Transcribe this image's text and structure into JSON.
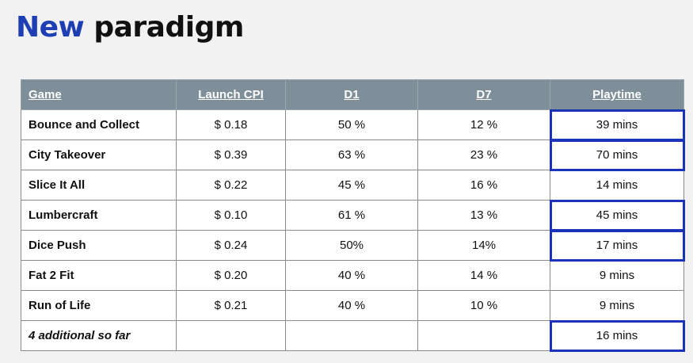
{
  "title": {
    "accent": "New",
    "rest": "paradigm"
  },
  "table": {
    "headers": [
      "Game",
      "Launch CPI",
      "D1",
      "D7",
      "Playtime"
    ],
    "rows": [
      {
        "cells": [
          "Bounce and Collect",
          "$ 0.18",
          "50 %",
          "12 %",
          "39 mins"
        ],
        "highlight_playtime": true
      },
      {
        "cells": [
          "City Takeover",
          "$ 0.39",
          "63 %",
          "23 %",
          "70 mins"
        ],
        "highlight_playtime": true
      },
      {
        "cells": [
          "Slice It All",
          "$ 0.22",
          "45 %",
          "16 %",
          "14 mins"
        ],
        "highlight_playtime": false
      },
      {
        "cells": [
          "Lumbercraft",
          "$ 0.10",
          "61 %",
          "13 %",
          "45 mins"
        ],
        "highlight_playtime": true
      },
      {
        "cells": [
          "Dice Push",
          "$ 0.24",
          "50%",
          "14%",
          "17 mins"
        ],
        "highlight_playtime": true
      },
      {
        "cells": [
          "Fat 2 Fit",
          "$ 0.20",
          "40 %",
          "14 %",
          "9 mins"
        ],
        "highlight_playtime": false
      },
      {
        "cells": [
          "Run of Life",
          "$ 0.21",
          "40 %",
          "10 %",
          "9 mins"
        ],
        "highlight_playtime": false
      },
      {
        "cells": [
          "4 additional so far",
          "",
          "",
          "",
          "16 mins"
        ],
        "highlight_playtime": true,
        "italic_first": true
      }
    ]
  },
  "colors": {
    "accent": "#1e3fb3",
    "header_bg": "#7f8f99",
    "highlight_border": "#1b33b8",
    "page_bg": "#f2f2f2"
  }
}
